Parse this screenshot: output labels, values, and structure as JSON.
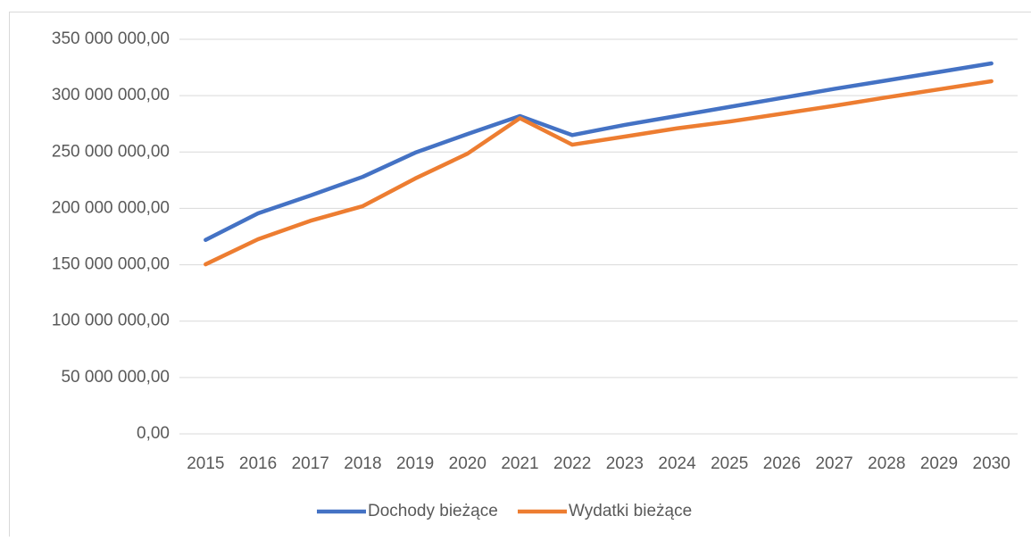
{
  "chart_data": {
    "type": "line",
    "categories": [
      "2015",
      "2016",
      "2017",
      "2018",
      "2019",
      "2020",
      "2021",
      "2022",
      "2023",
      "2024",
      "2025",
      "2026",
      "2027",
      "2028",
      "2029",
      "2030"
    ],
    "series": [
      {
        "name": "Dochody bieżące",
        "color": "#4472c4",
        "values": [
          172000000,
          195600000,
          211400000,
          228000000,
          249400000,
          266000000,
          281900000,
          265000000,
          274000000,
          282000000,
          290000000,
          298000000,
          306000000,
          313500000,
          321000000,
          328600000
        ]
      },
      {
        "name": "Wydatki bieżące",
        "color": "#ed7d31",
        "values": [
          150400000,
          172600000,
          189000000,
          202000000,
          226500000,
          248600000,
          280000000,
          256500000,
          263700000,
          271000000,
          277000000,
          284000000,
          291000000,
          298500000,
          305600000,
          312800000
        ]
      }
    ],
    "ylim": [
      0,
      350000000
    ],
    "yticks": [
      {
        "value": 0,
        "label": "0,00"
      },
      {
        "value": 50000000,
        "label": "50 000 000,00"
      },
      {
        "value": 100000000,
        "label": "100 000 000,00"
      },
      {
        "value": 150000000,
        "label": "150 000 000,00"
      },
      {
        "value": 200000000,
        "label": "200 000 000,00"
      },
      {
        "value": 250000000,
        "label": "250 000 000,00"
      },
      {
        "value": 300000000,
        "label": "300 000 000,00"
      },
      {
        "value": 350000000,
        "label": "350 000 000,00"
      }
    ],
    "grid": true,
    "legend": "bottom"
  }
}
